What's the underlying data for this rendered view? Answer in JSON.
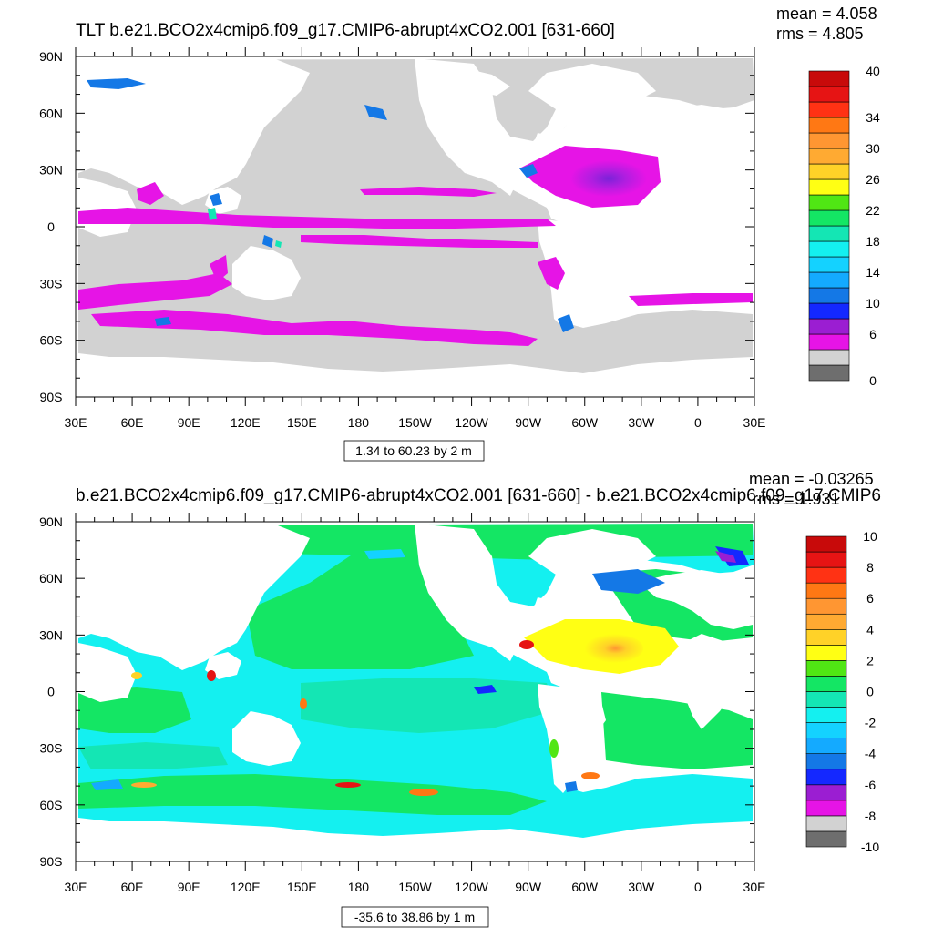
{
  "panels": [
    {
      "id": "top",
      "title": "TLT b.e21.BCO2x4cmip6.f09_g17.CMIP6-abrupt4xCO2.001 [631-660]",
      "mean_label": "mean = 4.058",
      "rms_label": "rms = 4.805",
      "range_label": "1.34 to 60.23 by 2 m",
      "y_ticks": [
        "90N",
        "60N",
        "30N",
        "0",
        "30S",
        "60S",
        "90S"
      ],
      "x_ticks": [
        "30E",
        "60E",
        "90E",
        "120E",
        "150E",
        "180",
        "150W",
        "120W",
        "90W",
        "60W",
        "30W",
        "0",
        "30E"
      ],
      "colorbar": {
        "colors": [
          "#6e6e6e",
          "#d2d2d2",
          "#e614e6",
          "#9b1ed2",
          "#1428ff",
          "#1478e6",
          "#14aaff",
          "#14d2ff",
          "#14f0f0",
          "#14e6b4",
          "#14e664",
          "#50e614",
          "#ffff14",
          "#ffd228",
          "#ffaa32",
          "#ff9632",
          "#ff7814",
          "#ff3214",
          "#e61414",
          "#c80a0a"
        ],
        "labels": [
          "0",
          "6",
          "10",
          "14",
          "18",
          "22",
          "26",
          "30",
          "34",
          "40"
        ],
        "label_slots": [
          0,
          3,
          5,
          7,
          9,
          11,
          13,
          15,
          17,
          20
        ]
      }
    },
    {
      "id": "bottom",
      "title": "b.e21.BCO2x4cmip6.f09_g17.CMIP6-abrupt4xCO2.001 [631-660] - b.e21.BCO2x4cmip6.f09_g17.CMIP6",
      "mean_label": "mean = -0.03265",
      "rms_label": "rms = 1.931",
      "range_label": "-35.6 to 38.86 by 1 m",
      "y_ticks": [
        "90N",
        "60N",
        "30N",
        "0",
        "30S",
        "60S",
        "90S"
      ],
      "x_ticks": [
        "30E",
        "60E",
        "90E",
        "120E",
        "150E",
        "180",
        "150W",
        "120W",
        "90W",
        "60W",
        "30W",
        "0",
        "30E"
      ],
      "colorbar": {
        "colors": [
          "#6e6e6e",
          "#d2d2d2",
          "#e614e6",
          "#9b1ed2",
          "#1428ff",
          "#1478e6",
          "#14aaff",
          "#14d2ff",
          "#14f0f0",
          "#14e6b4",
          "#14e664",
          "#50e614",
          "#ffff14",
          "#ffd228",
          "#ffaa32",
          "#ff9632",
          "#ff7814",
          "#ff3214",
          "#e61414",
          "#c80a0a"
        ],
        "labels": [
          "-10",
          "-8",
          "-6",
          "-4",
          "-2",
          "0",
          "2",
          "4",
          "6",
          "8",
          "10"
        ],
        "label_slots": [
          0,
          2,
          4,
          6,
          8,
          10,
          12,
          14,
          16,
          18,
          20
        ]
      }
    }
  ]
}
